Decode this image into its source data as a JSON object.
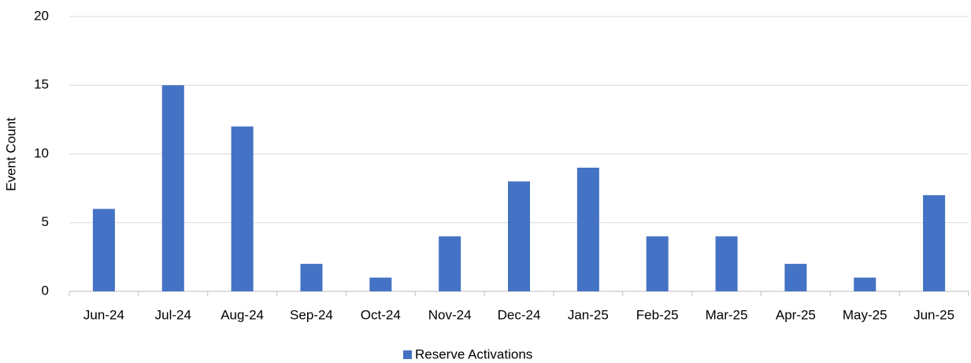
{
  "chart_data": {
    "type": "bar",
    "y_label": "Event Count",
    "categories": [
      "Jun-24",
      "Jul-24",
      "Aug-24",
      "Sep-24",
      "Oct-24",
      "Nov-24",
      "Dec-24",
      "Jan-25",
      "Feb-25",
      "Mar-25",
      "Apr-25",
      "May-25",
      "Jun-25"
    ],
    "series": [
      {
        "name": "Reserve Activations",
        "color": "#4472c4",
        "values": [
          6,
          15,
          12,
          2,
          1,
          4,
          8,
          9,
          4,
          4,
          2,
          1,
          7
        ]
      }
    ],
    "ylim": [
      0,
      20
    ],
    "yticks": [
      0,
      5,
      10,
      15,
      20
    ],
    "grid": true,
    "legend": "bottom"
  }
}
